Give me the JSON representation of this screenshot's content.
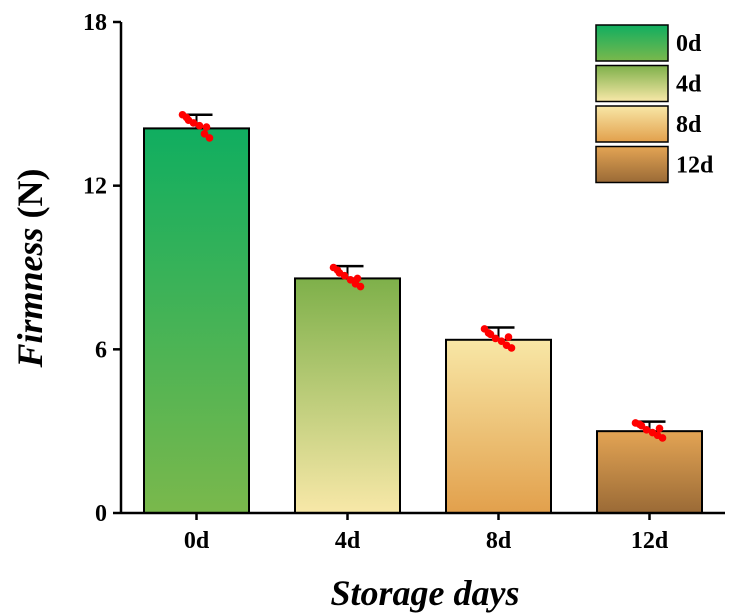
{
  "chart_data": {
    "type": "bar",
    "title": "",
    "xlabel": "Storage days",
    "ylabel_italic": "Firmness",
    "ylabel_unit": " (N)",
    "categories": [
      "0d",
      "4d",
      "8d",
      "12d"
    ],
    "values": [
      14.1,
      8.6,
      6.35,
      3.0
    ],
    "errors": [
      0.5,
      0.45,
      0.45,
      0.35
    ],
    "points": [
      [
        14.6,
        14.4,
        14.3,
        14.2,
        13.9,
        13.75,
        14.5,
        14.15
      ],
      [
        9.0,
        8.8,
        8.7,
        8.55,
        8.4,
        8.3,
        8.9,
        8.6
      ],
      [
        6.75,
        6.55,
        6.4,
        6.3,
        6.15,
        6.05,
        6.6,
        6.45
      ],
      [
        3.3,
        3.2,
        3.05,
        2.95,
        2.85,
        2.75,
        3.25,
        3.1
      ]
    ],
    "ylim": [
      0,
      18
    ],
    "yticks": [
      0,
      6,
      12,
      18
    ],
    "legend": {
      "placement": "top-right",
      "entries": [
        "0d",
        "4d",
        "8d",
        "12d"
      ]
    },
    "colors": {
      "0d": {
        "top": "#10ae60",
        "bottom": "#7ab84c"
      },
      "4d": {
        "top": "#7eb04a",
        "bottom": "#f8e8a8"
      },
      "8d": {
        "top": "#f8e7a6",
        "bottom": "#e2a04c"
      },
      "12d": {
        "top": "#e3a454",
        "bottom": "#9a6a36"
      },
      "points": "#ff0000",
      "edge": "#000000"
    },
    "grid": false
  }
}
